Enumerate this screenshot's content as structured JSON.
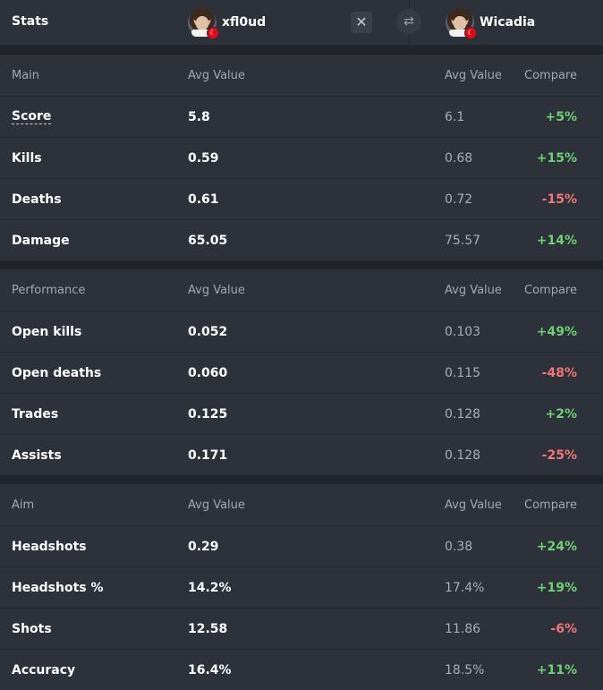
{
  "header": {
    "title": "Stats",
    "player1": {
      "name": "xfl0ud",
      "flag": "TR"
    },
    "player2": {
      "name": "Wicadia",
      "flag": "TR"
    },
    "close_icon": "close-icon",
    "swap_icon": "swap-icon"
  },
  "colors": {
    "positive": "#6fcf74",
    "negative": "#f07878",
    "flag": "#e30a17"
  },
  "sections": [
    {
      "title": "Main",
      "col_v1": "Avg Value",
      "col_v2": "Avg Value",
      "col_cmp": "Compare",
      "rows": [
        {
          "label": "Score",
          "v1": "5.8",
          "v2": "6.1",
          "cmp": "+5%"
        },
        {
          "label": "Kills",
          "v1": "0.59",
          "v2": "0.68",
          "cmp": "+15%"
        },
        {
          "label": "Deaths",
          "v1": "0.61",
          "v2": "0.72",
          "cmp": "-15%"
        },
        {
          "label": "Damage",
          "v1": "65.05",
          "v2": "75.57",
          "cmp": "+14%"
        }
      ]
    },
    {
      "title": "Performance",
      "col_v1": "Avg Value",
      "col_v2": "Avg Value",
      "col_cmp": "Compare",
      "rows": [
        {
          "label": "Open kills",
          "v1": "0.052",
          "v2": "0.103",
          "cmp": "+49%"
        },
        {
          "label": "Open deaths",
          "v1": "0.060",
          "v2": "0.115",
          "cmp": "-48%"
        },
        {
          "label": "Trades",
          "v1": "0.125",
          "v2": "0.128",
          "cmp": "+2%"
        },
        {
          "label": "Assists",
          "v1": "0.171",
          "v2": "0.128",
          "cmp": "-25%"
        }
      ]
    },
    {
      "title": "Aim",
      "col_v1": "Avg Value",
      "col_v2": "Avg Value",
      "col_cmp": "Compare",
      "rows": [
        {
          "label": "Headshots",
          "v1": "0.29",
          "v2": "0.38",
          "cmp": "+24%"
        },
        {
          "label": "Headshots %",
          "v1": "14.2%",
          "v2": "17.4%",
          "cmp": "+19%"
        },
        {
          "label": "Shots",
          "v1": "12.58",
          "v2": "11.86",
          "cmp": "-6%"
        },
        {
          "label": "Accuracy",
          "v1": "16.4%",
          "v2": "18.5%",
          "cmp": "+11%"
        }
      ]
    }
  ]
}
